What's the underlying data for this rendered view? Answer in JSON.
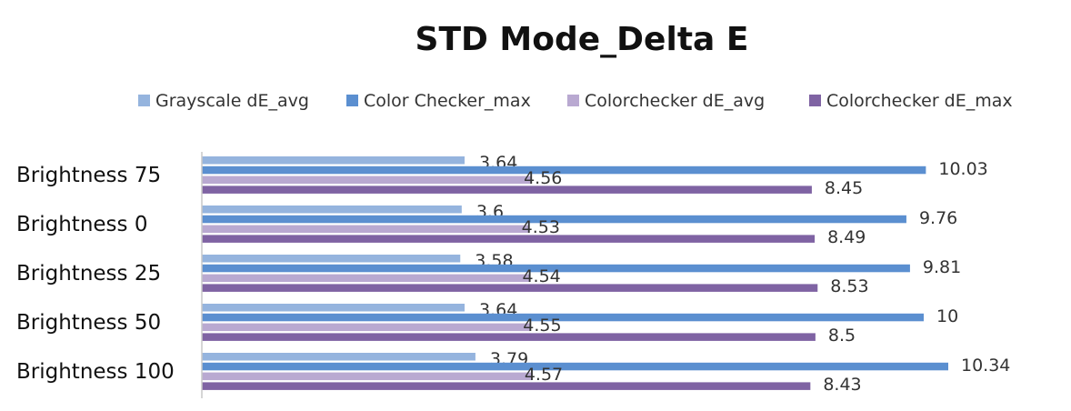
{
  "chart_data": {
    "type": "bar",
    "orientation": "horizontal",
    "title": "STD Mode_Delta E",
    "xlabel": "",
    "ylabel": "",
    "xlim": [
      0,
      11
    ],
    "grid": false,
    "legend_position": "top",
    "categories": [
      "Brightness 75",
      "Brightness 0",
      "Brightness 25",
      "Brightness 50",
      "Brightness 100"
    ],
    "series": [
      {
        "name": "Grayscale dE_avg",
        "color": "#95b4de",
        "values": [
          3.64,
          3.6,
          3.58,
          3.64,
          3.79
        ]
      },
      {
        "name": "Color Checker_max",
        "color": "#5b8fd0",
        "values": [
          10.03,
          9.76,
          9.81,
          10,
          10.34
        ]
      },
      {
        "name": "Colorchecker dE_avg",
        "color": "#b9a9d1",
        "values": [
          4.56,
          4.53,
          4.54,
          4.55,
          4.57
        ]
      },
      {
        "name": "Colorchecker dE_max",
        "color": "#7f63a3",
        "values": [
          8.45,
          8.49,
          8.53,
          8.5,
          8.43
        ]
      }
    ],
    "data_labels": [
      [
        "3.64",
        "3.6",
        "3.58",
        "3.64",
        "3.79"
      ],
      [
        "10.03",
        "9.76",
        "9.81",
        "10",
        "10.34"
      ],
      [
        "4.56",
        "4.53",
        "4.54",
        "4.55",
        "4.57"
      ],
      [
        "8.45",
        "8.49",
        "8.53",
        "8.5",
        "8.43"
      ]
    ]
  }
}
